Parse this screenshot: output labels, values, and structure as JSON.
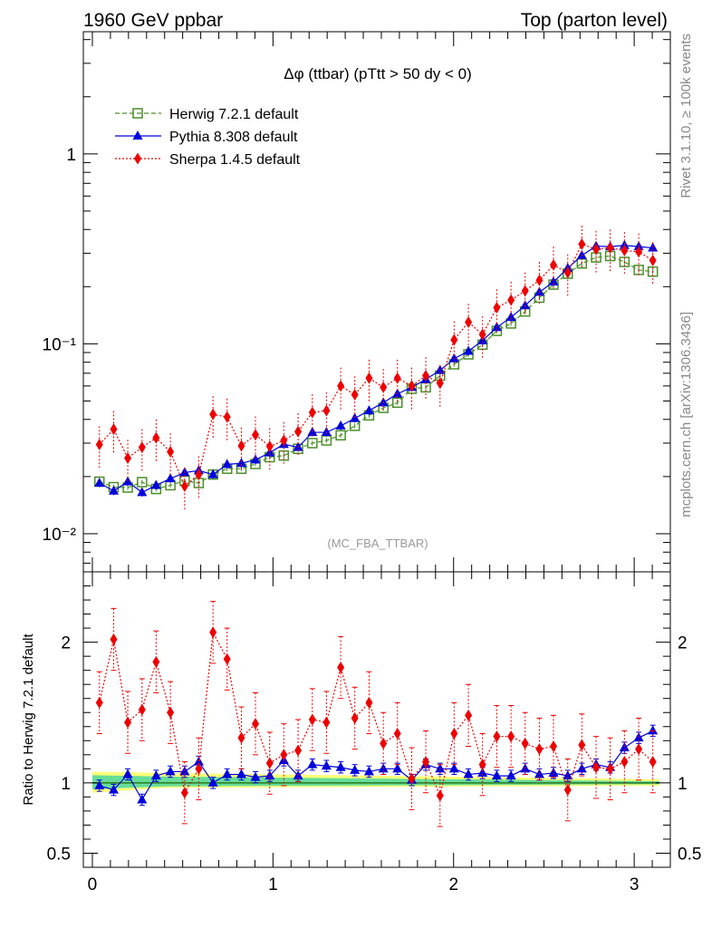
{
  "header": {
    "left": "1960 GeV ppbar",
    "right": "Top (parton level)"
  },
  "plot_title": "Δφ (ttbar) (pTtt > 50 dy < 0)",
  "watermark": "(MC_FBA_TTBAR)",
  "side_labels": {
    "rivet": "Rivet 3.1.10, ≥ 100k events",
    "source": "mcplots.cern.ch [arXiv:1306.3436]"
  },
  "chart_data": [
    {
      "type": "scatter",
      "panel": "main",
      "yscale": "log",
      "ylim": [
        0.0063,
        4.4
      ],
      "xlim": [
        -0.05,
        3.2
      ],
      "ytick_labels": [
        "10⁻²",
        "10⁻¹",
        "1"
      ],
      "ytick_values": [
        0.01,
        0.1,
        1
      ],
      "legend_position": "top-left",
      "x": [
        0.039,
        0.118,
        0.196,
        0.275,
        0.353,
        0.432,
        0.511,
        0.589,
        0.668,
        0.746,
        0.825,
        0.903,
        0.982,
        1.06,
        1.139,
        1.218,
        1.296,
        1.375,
        1.453,
        1.532,
        1.611,
        1.689,
        1.768,
        1.846,
        1.925,
        2.003,
        2.082,
        2.16,
        2.239,
        2.318,
        2.396,
        2.475,
        2.553,
        2.632,
        2.71,
        2.789,
        2.867,
        2.946,
        3.025,
        3.103
      ],
      "series": [
        {
          "name": "Herwig 7.2.1 default",
          "color": "#4a8e28",
          "marker": "open-square",
          "line": "dashed",
          "values": [
            0.0188,
            0.0176,
            0.0175,
            0.0187,
            0.0172,
            0.018,
            0.019,
            0.0185,
            0.0205,
            0.022,
            0.022,
            0.0233,
            0.0253,
            0.0258,
            0.028,
            0.03,
            0.031,
            0.033,
            0.037,
            0.042,
            0.046,
            0.049,
            0.058,
            0.059,
            0.068,
            0.078,
            0.088,
            0.099,
            0.117,
            0.128,
            0.148,
            0.175,
            0.205,
            0.234,
            0.265,
            0.285,
            0.29,
            0.27,
            0.245,
            0.24
          ]
        },
        {
          "name": "Pythia 8.308 default",
          "color": "#0000dd",
          "marker": "filled-triangle",
          "line": "solid",
          "values": [
            0.0185,
            0.0168,
            0.0188,
            0.0165,
            0.018,
            0.0195,
            0.021,
            0.0215,
            0.0205,
            0.0232,
            0.0235,
            0.0245,
            0.0267,
            0.0296,
            0.0285,
            0.0342,
            0.0342,
            0.037,
            0.0405,
            0.0445,
            0.049,
            0.0545,
            0.059,
            0.065,
            0.0725,
            0.0835,
            0.0915,
            0.104,
            0.122,
            0.138,
            0.159,
            0.187,
            0.212,
            0.25,
            0.292,
            0.327,
            0.325,
            0.33,
            0.325,
            0.32
          ]
        },
        {
          "name": "Sherpa 1.4.5 default",
          "color": "#ee0000",
          "marker": "filled-diamond",
          "line": "dotted",
          "values": [
            0.0295,
            0.0355,
            0.025,
            0.0285,
            0.032,
            0.027,
            0.0178,
            0.0205,
            0.0425,
            0.0412,
            0.029,
            0.0332,
            0.0288,
            0.031,
            0.0345,
            0.0435,
            0.0445,
            0.06,
            0.054,
            0.066,
            0.059,
            0.066,
            0.06,
            0.068,
            0.062,
            0.105,
            0.13,
            0.112,
            0.155,
            0.17,
            0.19,
            0.216,
            0.26,
            0.237,
            0.335,
            0.315,
            0.32,
            0.31,
            0.305,
            0.275
          ]
        }
      ]
    },
    {
      "type": "scatter",
      "panel": "ratio",
      "ylabel": "Ratio to Herwig 7.2.1 default",
      "ylim": [
        0.4,
        2.5
      ],
      "xlim": [
        -0.05,
        3.2
      ],
      "ytick_values": [
        0.5,
        1,
        2
      ],
      "ytick_labels": [
        "0.5",
        "1",
        "2"
      ],
      "xtick_values": [
        0,
        1,
        2,
        3
      ],
      "xtick_labels": [
        "0",
        "1",
        "2",
        "3"
      ],
      "x": [
        0.039,
        0.118,
        0.196,
        0.275,
        0.353,
        0.432,
        0.511,
        0.589,
        0.668,
        0.746,
        0.825,
        0.903,
        0.982,
        1.06,
        1.139,
        1.218,
        1.296,
        1.375,
        1.453,
        1.532,
        1.611,
        1.689,
        1.768,
        1.846,
        1.925,
        2.003,
        2.082,
        2.16,
        2.239,
        2.318,
        2.396,
        2.475,
        2.553,
        2.632,
        2.71,
        2.789,
        2.867,
        2.946,
        3.025,
        3.103
      ],
      "series": [
        {
          "name": "Pythia 8.308 default",
          "color": "#0000dd",
          "values": [
            0.98,
            0.95,
            1.06,
            0.88,
            1.05,
            1.08,
            1.08,
            1.15,
            1.0,
            1.06,
            1.06,
            1.04,
            1.05,
            1.16,
            1.05,
            1.13,
            1.12,
            1.11,
            1.09,
            1.08,
            1.1,
            1.1,
            1.02,
            1.13,
            1.1,
            1.1,
            1.06,
            1.07,
            1.05,
            1.05,
            1.1,
            1.06,
            1.07,
            1.05,
            1.1,
            1.13,
            1.11,
            1.25,
            1.32,
            1.37
          ]
        },
        {
          "name": "Sherpa 1.4.5 default",
          "color": "#ee0000",
          "values": [
            1.57,
            2.02,
            1.43,
            1.52,
            1.86,
            1.5,
            0.93,
            1.1,
            2.07,
            1.88,
            1.32,
            1.42,
            1.14,
            1.2,
            1.23,
            1.45,
            1.43,
            1.82,
            1.46,
            1.57,
            1.28,
            1.35,
            1.03,
            1.15,
            0.91,
            1.35,
            1.48,
            1.13,
            1.33,
            1.33,
            1.28,
            1.24,
            1.26,
            0.95,
            1.27,
            1.11,
            1.1,
            1.15,
            1.24,
            1.15
          ]
        }
      ]
    }
  ]
}
